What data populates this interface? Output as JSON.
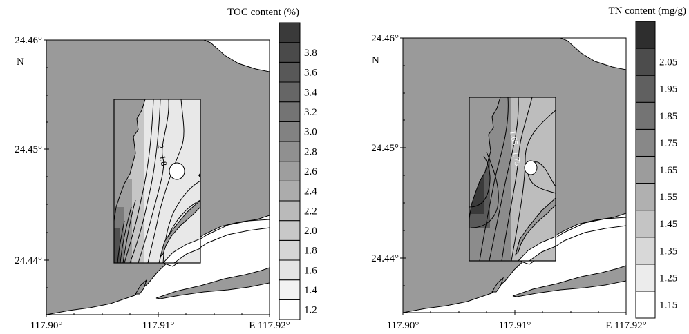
{
  "colors": {
    "land": "#9a9a9a",
    "water": "#ffffff",
    "outline": "#000000",
    "contour_line": "#000000"
  },
  "maps": [
    {
      "id": "toc",
      "legend_title": "TOC content (%)",
      "legend_levels": [
        "1.2",
        "1.4",
        "1.6",
        "1.8",
        "2.0",
        "2.2",
        "2.4",
        "2.6",
        "2.8",
        "3.0",
        "3.2",
        "3.4",
        "3.6",
        "3.8"
      ],
      "legend_colors": [
        "#ffffff",
        "#f2f2f2",
        "#e4e4e4",
        "#d6d6d6",
        "#c8c8c8",
        "#bababa",
        "#acacac",
        "#9e9e9e",
        "#909090",
        "#828282",
        "#747474",
        "#666666",
        "#585858",
        "#4a4a4a",
        "#3a3a3a"
      ],
      "y_ticks": [
        "24.46°",
        "24.45°",
        "24.44°"
      ],
      "north_label": "N",
      "x_ticks": [
        "117.90°",
        "117.91°",
        "E 117.92°"
      ],
      "contour_labels": [
        "2",
        "1.8"
      ]
    },
    {
      "id": "tn",
      "legend_title": "TN content (mg/g)",
      "legend_levels": [
        "1.15",
        "1.25",
        "1.35",
        "1.45",
        "1.55",
        "1.65",
        "1.75",
        "1.85",
        "1.95",
        "2.05"
      ],
      "legend_colors": [
        "#ffffff",
        "#ececec",
        "#d8d8d8",
        "#c4c4c4",
        "#b0b0b0",
        "#9c9c9c",
        "#888888",
        "#747474",
        "#606060",
        "#4c4c4c",
        "#2e2e2e"
      ],
      "y_ticks": [
        "24.46°",
        "24.45°",
        "24.44°"
      ],
      "north_label": "N",
      "x_ticks": [
        "117.90°",
        "117.91°",
        "E 117.92°"
      ],
      "contour_labels": [
        "1.65",
        "1.75"
      ]
    }
  ]
}
